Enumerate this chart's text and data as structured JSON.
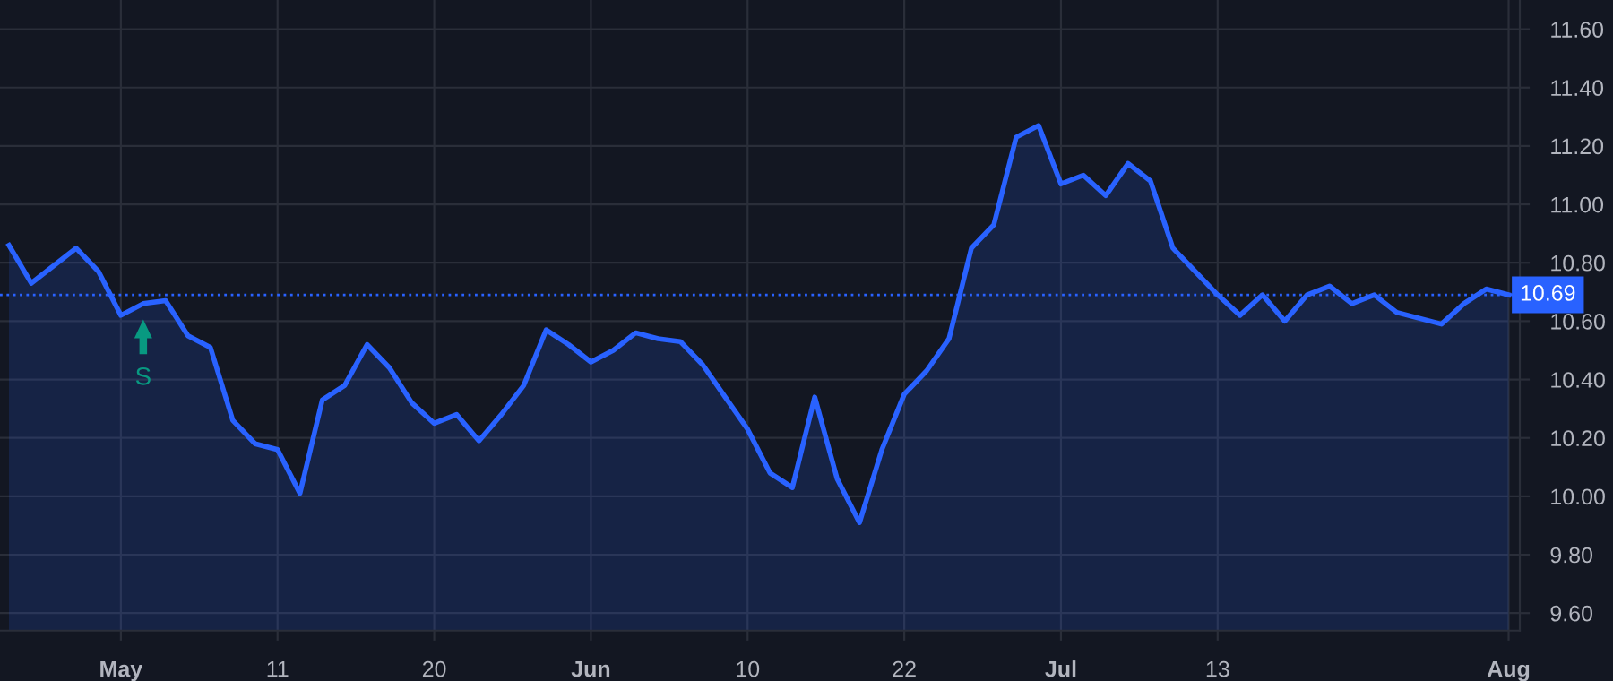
{
  "chart_data": {
    "type": "area",
    "categories": [
      null,
      null,
      null,
      null,
      null,
      "May",
      null,
      null,
      null,
      null,
      null,
      null,
      "11",
      null,
      null,
      null,
      null,
      null,
      null,
      "20",
      null,
      null,
      null,
      null,
      null,
      null,
      "Jun",
      null,
      null,
      null,
      null,
      null,
      null,
      "10",
      null,
      null,
      null,
      null,
      null,
      null,
      "22",
      null,
      null,
      null,
      null,
      null,
      null,
      "Jul",
      null,
      null,
      null,
      null,
      null,
      null,
      "13",
      null,
      null,
      null,
      null,
      null,
      null,
      null,
      null,
      null,
      null,
      null,
      null,
      "Aug"
    ],
    "series": [
      {
        "color": "#2962ff",
        "values": [
          10.86,
          10.73,
          10.79,
          10.85,
          10.77,
          10.62,
          10.66,
          10.67,
          10.55,
          10.51,
          10.26,
          10.18,
          10.16,
          10.01,
          10.33,
          10.38,
          10.52,
          10.44,
          10.32,
          10.25,
          10.28,
          10.19,
          10.28,
          10.38,
          10.57,
          10.52,
          10.46,
          10.5,
          10.56,
          10.54,
          10.53,
          10.45,
          10.34,
          10.23,
          10.08,
          10.03,
          10.34,
          10.06,
          9.91,
          10.16,
          10.35,
          10.43,
          10.54,
          10.85,
          10.93,
          11.23,
          11.27,
          11.07,
          11.1,
          11.03,
          11.14,
          11.08,
          10.85,
          10.77,
          10.69,
          10.62,
          10.69,
          10.6,
          10.69,
          10.72,
          10.66,
          10.69,
          10.63,
          10.61,
          10.59,
          10.66,
          10.71,
          10.69
        ]
      }
    ],
    "ylim": [
      9.54,
      11.7
    ],
    "yticks": [
      {
        "value": 9.6,
        "label": "9.60"
      },
      {
        "value": 9.8,
        "label": "9.80"
      },
      {
        "value": 10.0,
        "label": "10.00"
      },
      {
        "value": 10.2,
        "label": "10.20"
      },
      {
        "value": 10.4,
        "label": "10.40"
      },
      {
        "value": 10.6,
        "label": "10.60"
      },
      {
        "value": 10.8,
        "label": "10.80"
      },
      {
        "value": 11.0,
        "label": "11.00"
      },
      {
        "value": 11.2,
        "label": "11.20"
      },
      {
        "value": 11.4,
        "label": "11.40"
      },
      {
        "value": 11.6,
        "label": "11.60"
      }
    ],
    "ref_lines": [
      {
        "axis": "y",
        "value": 10.69,
        "label": "10.69",
        "color": "#2962ff",
        "line_style": "dotted"
      }
    ],
    "annotations": [
      {
        "text": "S",
        "y": 10.66
      }
    ],
    "grid": true,
    "marker": "none",
    "line_style": "solid"
  }
}
